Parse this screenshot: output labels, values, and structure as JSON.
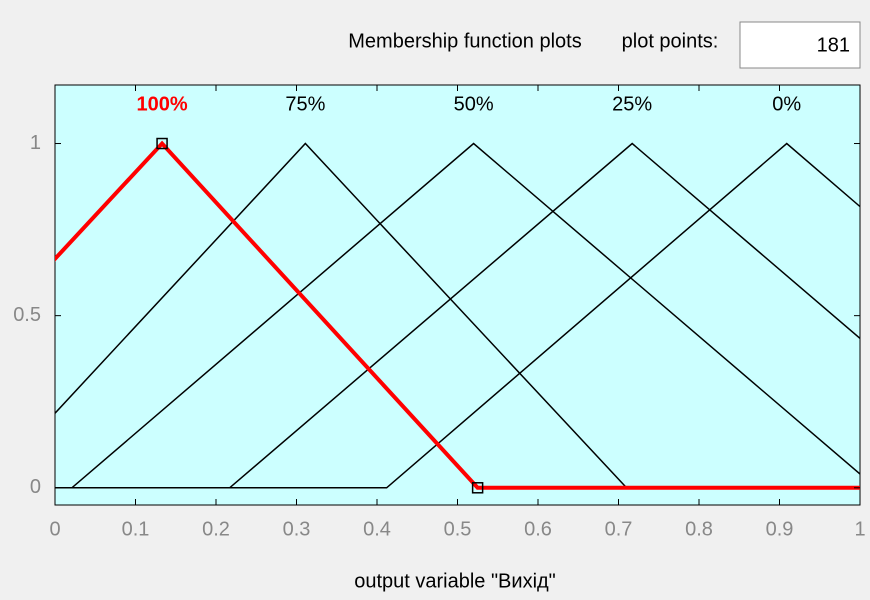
{
  "header": {
    "title": "Membership function plots",
    "plot_points_label": "plot points:",
    "plot_points": 181
  },
  "chart_data": {
    "type": "line",
    "xlabel": "output variable \"Вихід\"",
    "xlim": [
      0,
      1
    ],
    "ylim": [
      -0.05,
      1.17
    ],
    "xticks": [
      0,
      0.1,
      0.2,
      0.3,
      0.4,
      0.5,
      0.6,
      0.7,
      0.8,
      0.9,
      1
    ],
    "yticks": [
      0,
      0.5,
      1
    ],
    "grid": false,
    "series": [
      {
        "name": "100%",
        "color": "#ff0000",
        "params": [
          -0.264,
          0.133,
          0.525
        ],
        "selected": true
      },
      {
        "name": "75%",
        "color": "#000000",
        "params": [
          -0.086,
          0.311,
          0.71
        ]
      },
      {
        "name": "50%",
        "color": "#000000",
        "params": [
          0.021,
          0.52,
          1.02
        ]
      },
      {
        "name": "25%",
        "color": "#000000",
        "params": [
          0.217,
          0.717,
          1.217
        ]
      },
      {
        "name": "0%",
        "color": "#000000",
        "params": [
          0.412,
          0.909,
          1.406
        ]
      }
    ]
  }
}
